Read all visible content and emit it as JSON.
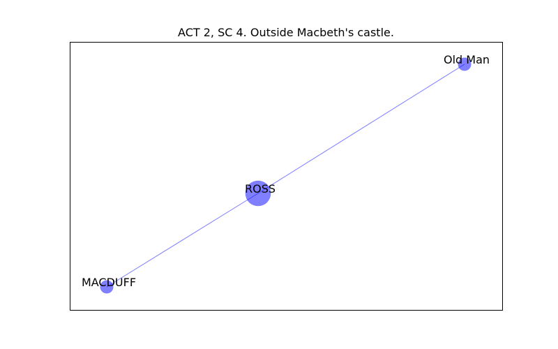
{
  "title": "ACT 2, SC 4. Outside Macbeth's castle.",
  "colors": {
    "node_fill": "#0000ff",
    "edge_stroke": "#0000ff",
    "frame": "#000000",
    "background": "#ffffff"
  },
  "nodes": [
    {
      "id": "ROSS",
      "label": "ROSS",
      "weight": 2
    },
    {
      "id": "Old Man",
      "label": "Old Man",
      "weight": 1
    },
    {
      "id": "MACDUFF",
      "label": "MACDUFF",
      "weight": 1
    }
  ],
  "edges": [
    {
      "source": "ROSS",
      "target": "Old Man"
    },
    {
      "source": "ROSS",
      "target": "MACDUFF"
    }
  ]
}
